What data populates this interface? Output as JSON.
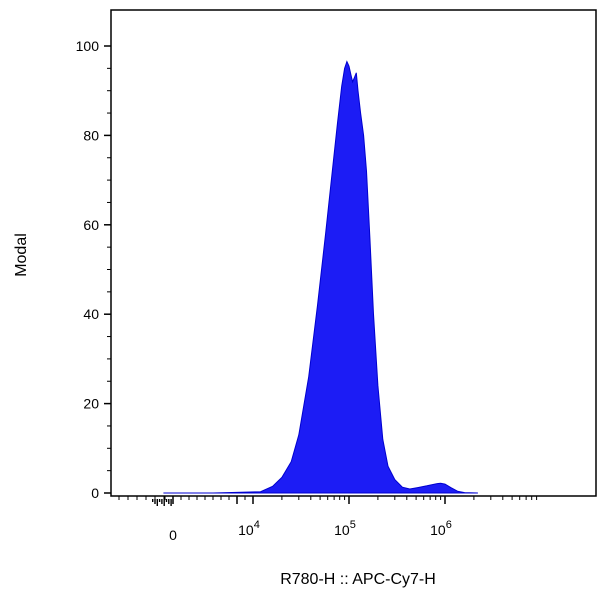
{
  "chart_data": {
    "type": "area",
    "title": "",
    "xlabel": "R780-H :: APC-Cy7-H",
    "ylabel": "Modal",
    "x_scale": "biexponential",
    "x_ticks": [
      {
        "value": 0,
        "base": "0",
        "exp": ""
      },
      {
        "value": 10000,
        "base": "10",
        "exp": "4"
      },
      {
        "value": 100000,
        "base": "10",
        "exp": "5"
      },
      {
        "value": 1000000,
        "base": "10",
        "exp": "6"
      }
    ],
    "ylim": [
      0,
      100
    ],
    "y_ticks": [
      0,
      20,
      40,
      60,
      80,
      100
    ],
    "grid": false,
    "legend": "none",
    "fill_color": "#1c1cf5",
    "edge_color": "#0000d0",
    "series": [
      {
        "values_note_free": true,
        "points": [
          [
            -1200,
            0
          ],
          [
            5000,
            0
          ],
          [
            12000,
            0.3
          ],
          [
            16000,
            1.5
          ],
          [
            20000,
            3.5
          ],
          [
            25000,
            7
          ],
          [
            30000,
            13
          ],
          [
            38000,
            26
          ],
          [
            47000,
            42
          ],
          [
            57000,
            58
          ],
          [
            67000,
            72
          ],
          [
            76000,
            83
          ],
          [
            84000,
            91
          ],
          [
            90000,
            95
          ],
          [
            95000,
            96.5
          ],
          [
            100000,
            95.5
          ],
          [
            105000,
            93.5
          ],
          [
            109000,
            92
          ],
          [
            114000,
            93
          ],
          [
            119000,
            94
          ],
          [
            124000,
            90
          ],
          [
            132000,
            85
          ],
          [
            142000,
            80
          ],
          [
            152000,
            72
          ],
          [
            165000,
            57
          ],
          [
            180000,
            40
          ],
          [
            200000,
            24
          ],
          [
            225000,
            12
          ],
          [
            255000,
            6
          ],
          [
            300000,
            3
          ],
          [
            360000,
            1.3
          ],
          [
            430000,
            0.9
          ],
          [
            520000,
            1.2
          ],
          [
            650000,
            1.6
          ],
          [
            750000,
            1.9
          ],
          [
            830000,
            2.1
          ],
          [
            900000,
            2.2
          ],
          [
            1000000,
            2
          ],
          [
            1150000,
            1.2
          ],
          [
            1350000,
            0.4
          ],
          [
            1600000,
            0.1
          ],
          [
            2200000,
            0
          ]
        ]
      }
    ]
  }
}
